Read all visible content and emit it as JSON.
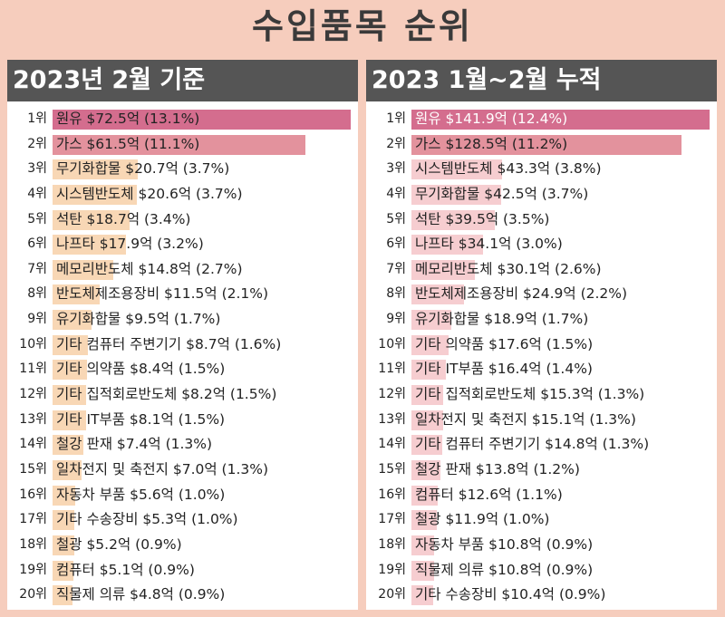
{
  "title": "수입품목 순위",
  "colors": {
    "background": "#f6cdbd",
    "header_bg": "#555555",
    "bar_top1": "#d46d8e",
    "bar_top2": "#e3929d",
    "bar_other": "#f8d7b5",
    "bar_other_right": "#f6cdd0"
  },
  "chart_data": [
    {
      "type": "bar",
      "orientation": "horizontal",
      "title": "2023년 2월 기준",
      "unit": "억 달러",
      "ranks": [
        "1위",
        "2위",
        "3위",
        "4위",
        "5위",
        "6위",
        "7위",
        "8위",
        "9위",
        "10위",
        "11위",
        "12위",
        "13위",
        "14위",
        "15위",
        "16위",
        "17위",
        "18위",
        "19위",
        "20위"
      ],
      "categories": [
        "원유",
        "가스",
        "무기화합물",
        "시스템반도체",
        "석탄",
        "나프타",
        "메모리반도체",
        "반도체제조용장비",
        "유기화합물",
        "기타 컴퓨터 주변기기",
        "기타 의약품",
        "기타 집적회로반도체",
        "기타 IT부품",
        "철강 판재",
        "일차전지 및 축전지",
        "자동차 부품",
        "기타 수송장비",
        "철광",
        "컴퓨터",
        "직물제 의류"
      ],
      "values": [
        72.5,
        61.5,
        20.7,
        20.6,
        18.7,
        17.9,
        14.8,
        11.5,
        9.5,
        8.7,
        8.4,
        8.2,
        8.1,
        7.4,
        7.0,
        5.6,
        5.3,
        5.2,
        5.1,
        4.8
      ],
      "shares": [
        "13.1%",
        "11.1%",
        "3.7%",
        "3.7%",
        "3.4%",
        "3.2%",
        "2.7%",
        "2.1%",
        "1.7%",
        "1.6%",
        "1.5%",
        "1.5%",
        "1.5%",
        "1.3%",
        "1.3%",
        "1.0%",
        "1.0%",
        "0.9%",
        "0.9%",
        "0.9%"
      ],
      "labels": [
        "원유 $72.5억 (13.1%)",
        "가스 $61.5억 (11.1%)",
        "무기화합물 $20.7억 (3.7%)",
        "시스템반도체 $20.6억 (3.7%)",
        "석탄 $18.7억 (3.4%)",
        "나프타 $17.9억 (3.2%)",
        "메모리반도체 $14.8억 (2.7%)",
        "반도체제조용장비 $11.5억 (2.1%)",
        "유기화합물 $9.5억 (1.7%)",
        "기타 컴퓨터 주변기기 $8.7억 (1.6%)",
        "기타 의약품 $8.4억 (1.5%)",
        "기타 집적회로반도체 $8.2억 (1.5%)",
        "기타 IT부품 $8.1억 (1.5%)",
        "철강 판재 $7.4억 (1.3%)",
        "일차전지 및 축전지 $7.0억 (1.3%)",
        "자동차 부품 $5.6억 (1.0%)",
        "기타 수송장비 $5.3억 (1.0%)",
        "철광 $5.2억 (0.9%)",
        "컴퓨터 $5.1억 (0.9%)",
        "직물제 의류 $4.8억 (0.9%)"
      ],
      "xlim": [
        0,
        72.5
      ]
    },
    {
      "type": "bar",
      "orientation": "horizontal",
      "title": "2023 1월~2월 누적",
      "unit": "억 달러",
      "ranks": [
        "1위",
        "2위",
        "3위",
        "4위",
        "5위",
        "6위",
        "7위",
        "8위",
        "9위",
        "10위",
        "11위",
        "12위",
        "13위",
        "14위",
        "15위",
        "16위",
        "17위",
        "18위",
        "19위",
        "20위"
      ],
      "categories": [
        "원유",
        "가스",
        "시스템반도체",
        "무기화합물",
        "석탄",
        "나프타",
        "메모리반도체",
        "반도체제조용장비",
        "유기화합물",
        "기타 의약품",
        "기타 IT부품",
        "기타 집적회로반도체",
        "일차전지 및 축전지",
        "기타 컴퓨터 주변기기",
        "철강 판재",
        "컴퓨터",
        "철광",
        "자동차 부품",
        "직물제 의류",
        "기타 수송장비"
      ],
      "values": [
        141.9,
        128.5,
        43.3,
        42.5,
        39.5,
        34.1,
        30.1,
        24.9,
        18.9,
        17.6,
        16.4,
        15.3,
        15.1,
        14.8,
        13.8,
        12.6,
        11.9,
        10.8,
        10.8,
        10.4
      ],
      "shares": [
        "12.4%",
        "11.2%",
        "3.8%",
        "3.7%",
        "3.5%",
        "3.0%",
        "2.6%",
        "2.2%",
        "1.7%",
        "1.5%",
        "1.4%",
        "1.3%",
        "1.3%",
        "1.3%",
        "1.2%",
        "1.1%",
        "1.0%",
        "0.9%",
        "0.9%",
        "0.9%"
      ],
      "labels": [
        "원유 $141.9억 (12.4%)",
        "가스 $128.5억 (11.2%)",
        "시스템반도체 $43.3억 (3.8%)",
        "무기화합물 $42.5억 (3.7%)",
        "석탄 $39.5억 (3.5%)",
        "나프타 $34.1억 (3.0%)",
        "메모리반도체 $30.1억 (2.6%)",
        "반도체제조용장비 $24.9억 (2.2%)",
        "유기화합물 $18.9억 (1.7%)",
        "기타 의약품 $17.6억 (1.5%)",
        "기타 IT부품 $16.4억 (1.4%)",
        "기타 집적회로반도체 $15.3억 (1.3%)",
        "일차전지 및 축전지 $15.1억 (1.3%)",
        "기타 컴퓨터 주변기기 $14.8억 (1.3%)",
        "철강 판재 $13.8억 (1.2%)",
        "컴퓨터 $12.6억 (1.1%)",
        "철광 $11.9억 (1.0%)",
        "자동차 부품 $10.8억 (0.9%)",
        "직물제 의류 $10.8억 (0.9%)",
        "기타 수송장비 $10.4억 (0.9%)"
      ],
      "xlim": [
        0,
        141.9
      ]
    }
  ]
}
